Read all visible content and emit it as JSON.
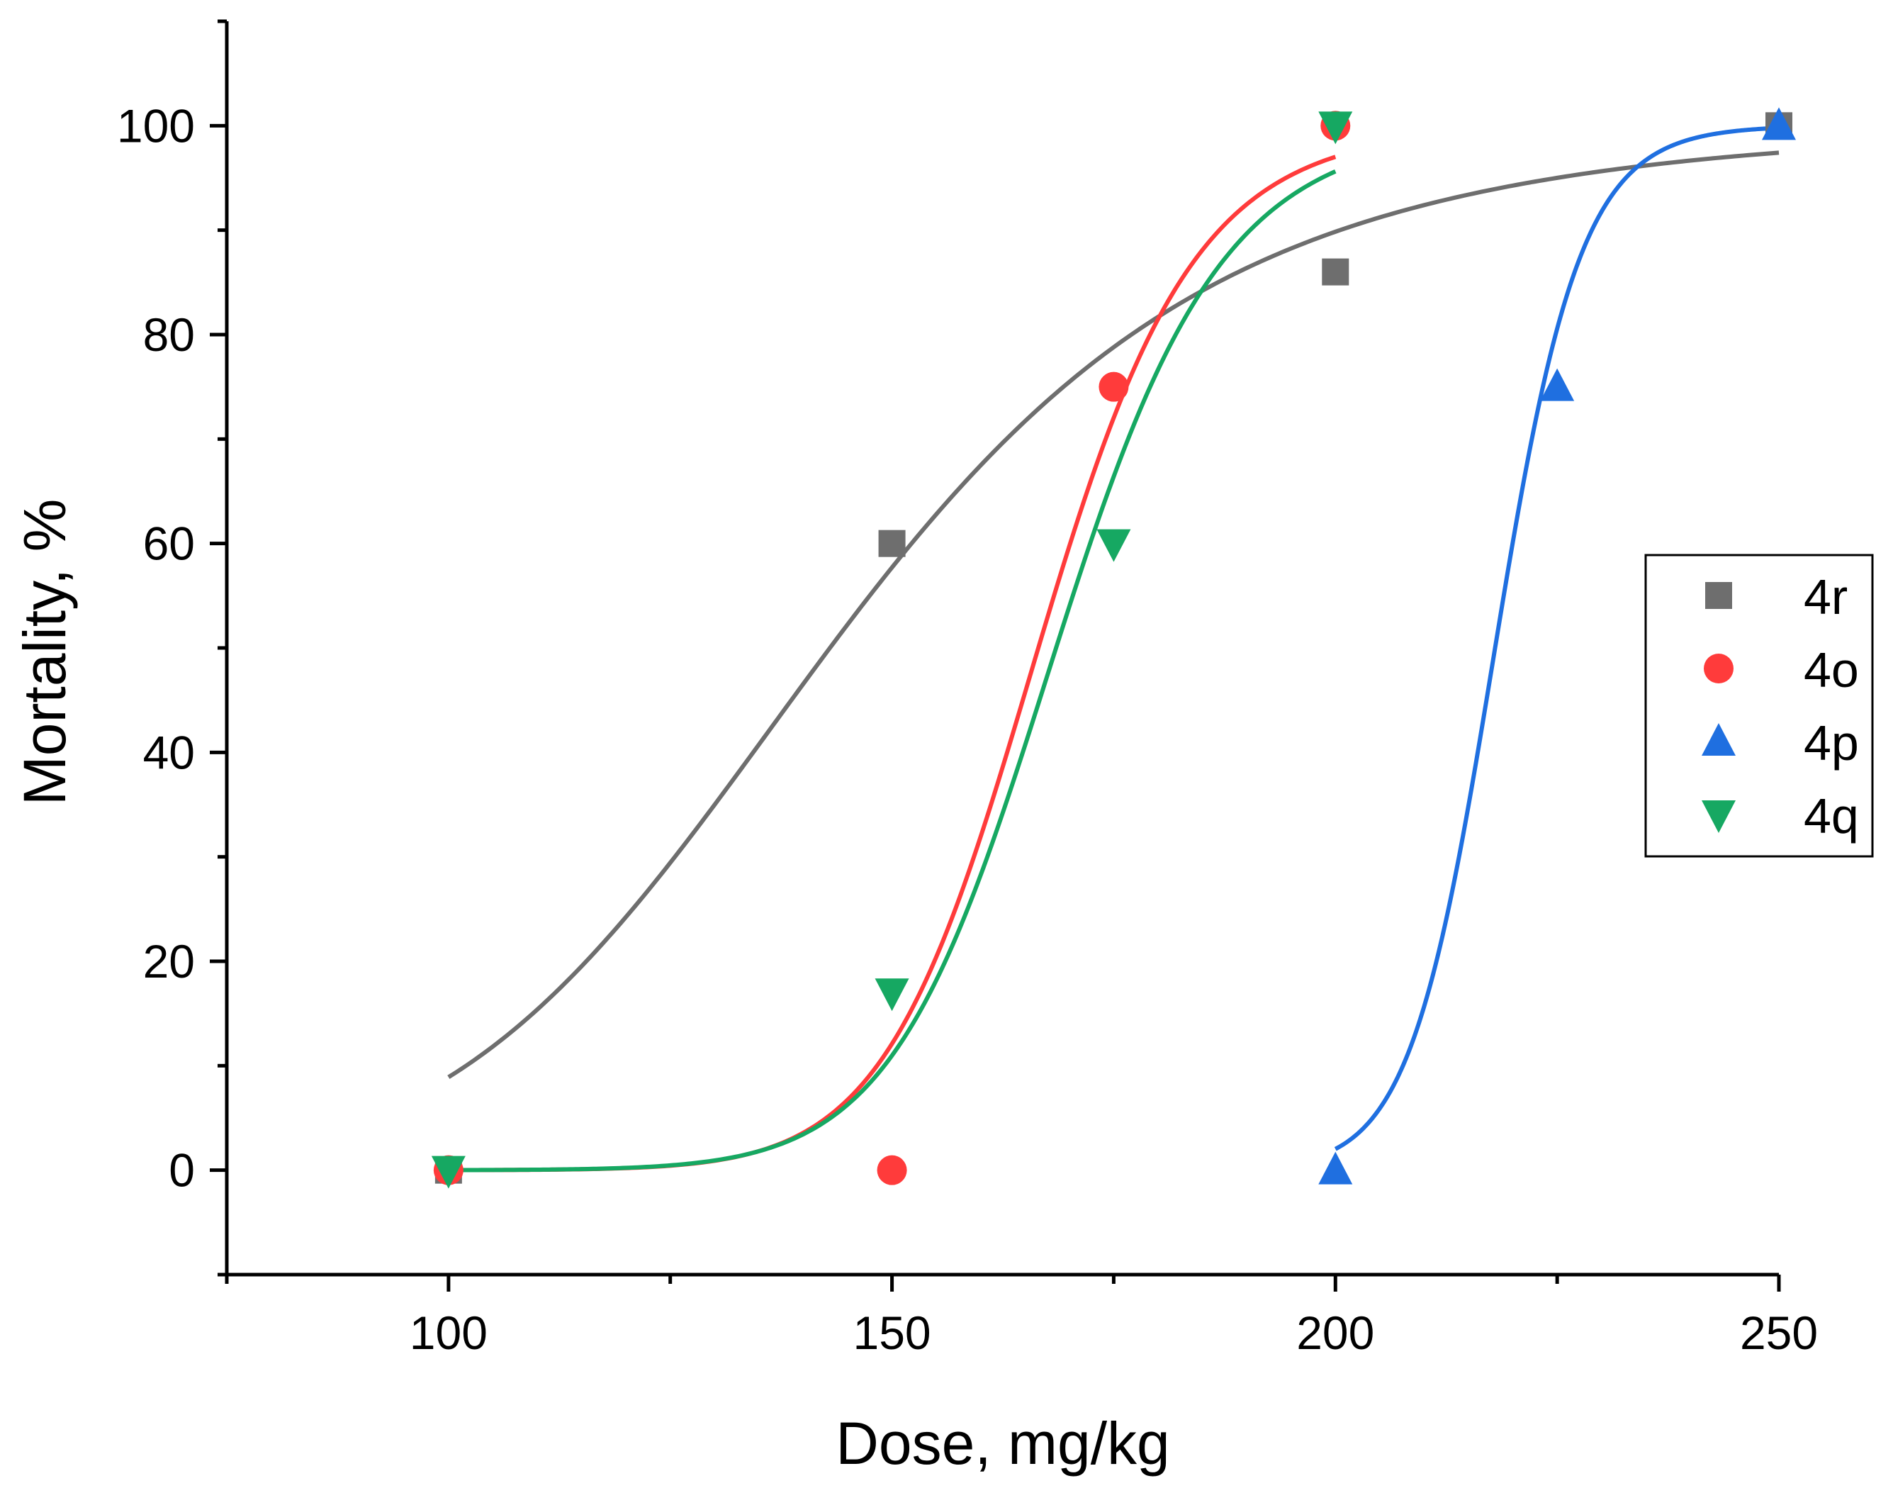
{
  "chart_data": {
    "type": "scatter",
    "title": "",
    "xlabel": "Dose, mg/kg",
    "ylabel": "Mortality, %",
    "xlim": [
      75,
      250
    ],
    "ylim": [
      -10,
      110
    ],
    "x_ticks": [
      100,
      150,
      200,
      250
    ],
    "y_ticks": [
      0,
      20,
      40,
      60,
      80,
      100
    ],
    "x_tick_labels": [
      "100",
      "150",
      "200",
      "250"
    ],
    "y_tick_labels": [
      "0",
      "20",
      "40",
      "60",
      "80",
      "100"
    ],
    "legend_position": "right",
    "series": [
      {
        "name": "4r",
        "marker": "square",
        "color": "#6e6e6e",
        "x": [
          100,
          150,
          200,
          250
        ],
        "y": [
          0,
          60,
          86,
          100
        ],
        "fit": {
          "x0": 143,
          "p": 6.5,
          "range": [
            100,
            250
          ]
        }
      },
      {
        "name": "4o",
        "marker": "circle",
        "color": "#ff3b3b",
        "x": [
          100,
          150,
          175,
          200
        ],
        "y": [
          0,
          0,
          75,
          100
        ],
        "fit": {
          "x0": 166.5,
          "p": 19,
          "range": [
            100,
            200
          ]
        }
      },
      {
        "name": "4p",
        "marker": "triangle-up",
        "color": "#1f6fe0",
        "x": [
          200,
          225,
          250
        ],
        "y": [
          0,
          75,
          100
        ],
        "fit": {
          "x0": 218,
          "p": 45,
          "range": [
            200,
            250
          ]
        }
      },
      {
        "name": "4q",
        "marker": "triangle-down",
        "color": "#16a862",
        "x": [
          100,
          150,
          175,
          200
        ],
        "y": [
          0,
          17,
          60,
          100
        ],
        "fit": {
          "x0": 168.5,
          "p": 18,
          "range": [
            100,
            200
          ]
        }
      }
    ]
  }
}
